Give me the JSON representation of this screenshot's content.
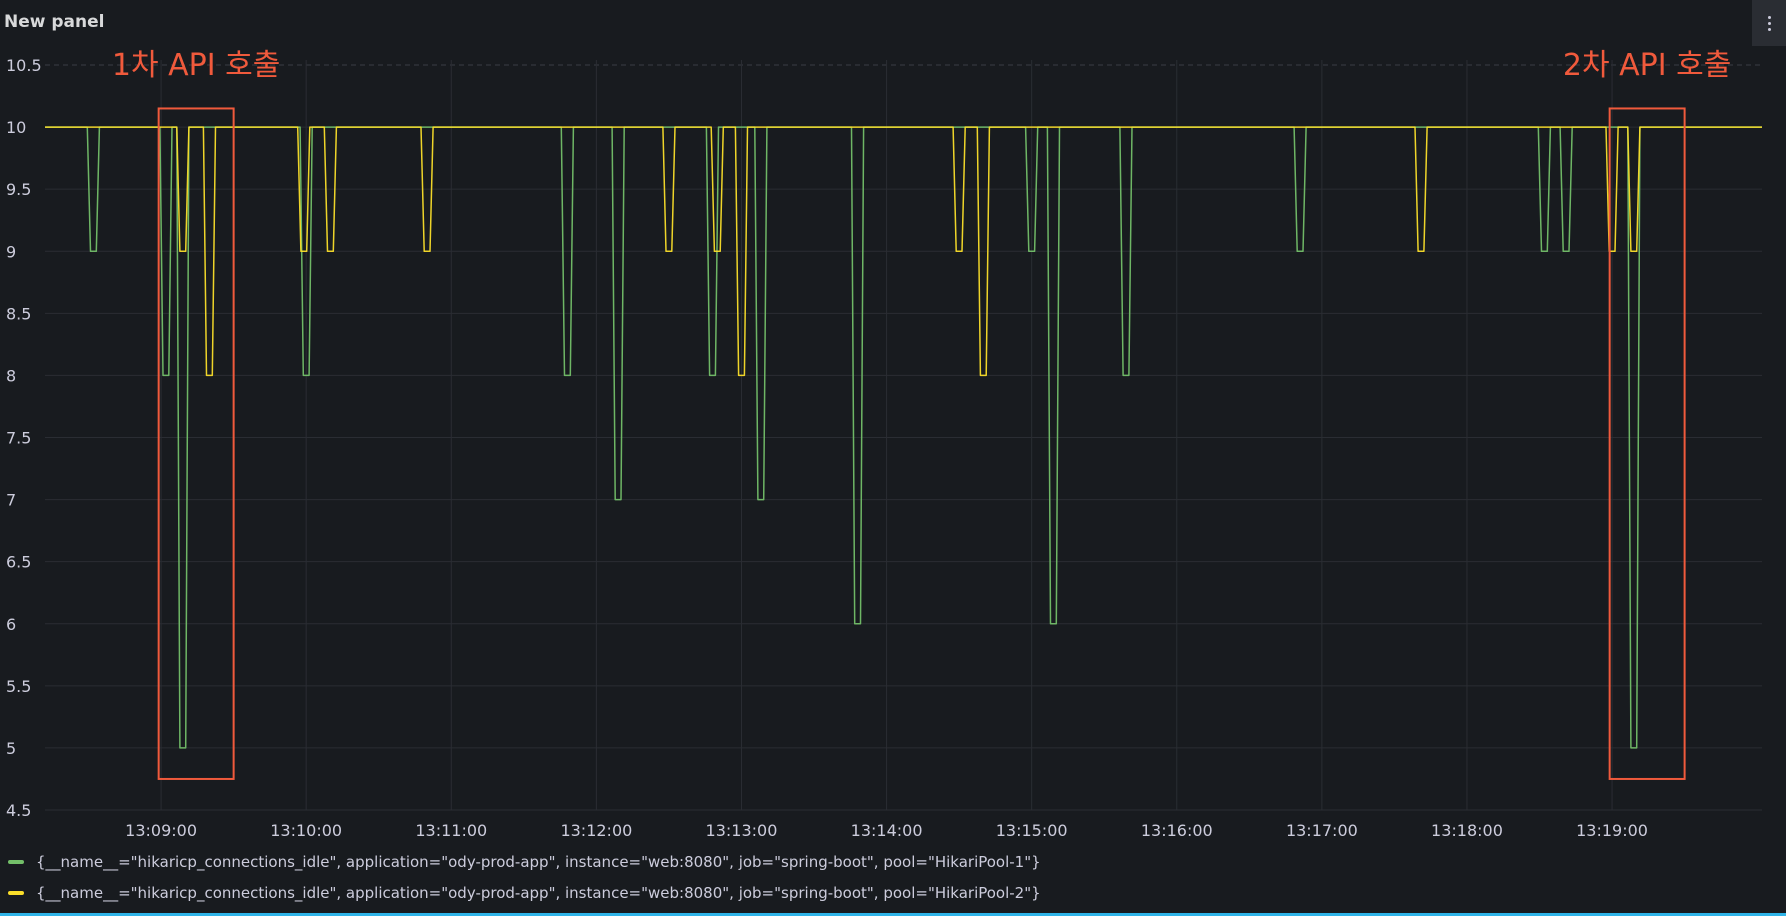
{
  "panel": {
    "title": "New panel",
    "menu_icon": "kebab-menu-icon"
  },
  "chart_data": {
    "type": "line",
    "ylim": [
      4.5,
      10.5
    ],
    "yticks": [
      "4.5",
      "5",
      "5.5",
      "6",
      "6.5",
      "7",
      "7.5",
      "8",
      "8.5",
      "9",
      "9.5",
      "10",
      "10.5"
    ],
    "xlim": [
      "13:08:12",
      "13:20:02"
    ],
    "xticks": [
      "13:09:00",
      "13:10:00",
      "13:11:00",
      "13:12:00",
      "13:13:00",
      "13:14:00",
      "13:15:00",
      "13:16:00",
      "13:17:00",
      "13:18:00",
      "13:19:00"
    ],
    "baseline": 10,
    "grid": true,
    "legend_position": "bottom",
    "series": [
      {
        "name": "{__name__=\"hikaricp_connections_idle\", application=\"ody-prod-app\", instance=\"web:8080\", job=\"spring-boot\", pool=\"HikariPool-1\"}",
        "color": "#73bf69",
        "dips": [
          {
            "time": "13:08:32",
            "value": 9
          },
          {
            "time": "13:09:02",
            "value": 8
          },
          {
            "time": "13:09:09",
            "value": 5
          },
          {
            "time": "13:10:00",
            "value": 8
          },
          {
            "time": "13:11:48",
            "value": 8
          },
          {
            "time": "13:12:09",
            "value": 7
          },
          {
            "time": "13:12:48",
            "value": 8
          },
          {
            "time": "13:13:08",
            "value": 7
          },
          {
            "time": "13:13:48",
            "value": 6
          },
          {
            "time": "13:15:00",
            "value": 9
          },
          {
            "time": "13:15:09",
            "value": 6
          },
          {
            "time": "13:15:39",
            "value": 8
          },
          {
            "time": "13:16:51",
            "value": 9
          },
          {
            "time": "13:18:32",
            "value": 9
          },
          {
            "time": "13:18:41",
            "value": 9
          },
          {
            "time": "13:19:09",
            "value": 5
          }
        ]
      },
      {
        "name": "{__name__=\"hikaricp_connections_idle\", application=\"ody-prod-app\", instance=\"web:8080\", job=\"spring-boot\", pool=\"HikariPool-2\"}",
        "color": "#fade2a",
        "dips": [
          {
            "time": "13:09:09",
            "value": 9
          },
          {
            "time": "13:09:20",
            "value": 8
          },
          {
            "time": "13:09:59",
            "value": 9
          },
          {
            "time": "13:10:10",
            "value": 9
          },
          {
            "time": "13:10:50",
            "value": 9
          },
          {
            "time": "13:12:30",
            "value": 9
          },
          {
            "time": "13:12:50",
            "value": 9
          },
          {
            "time": "13:13:00",
            "value": 8
          },
          {
            "time": "13:14:30",
            "value": 9
          },
          {
            "time": "13:14:40",
            "value": 8
          },
          {
            "time": "13:17:41",
            "value": 9
          },
          {
            "time": "13:19:00",
            "value": 9
          },
          {
            "time": "13:19:09",
            "value": 9
          }
        ]
      }
    ],
    "annotations": [
      {
        "label": "1차 API 호출",
        "from": "13:08:59",
        "to": "13:09:30",
        "color": "#f05a3c"
      },
      {
        "label": "2차 API 호출",
        "from": "13:18:59",
        "to": "13:19:30",
        "color": "#f05a3c"
      }
    ]
  },
  "legend": {
    "position": "bottom"
  }
}
